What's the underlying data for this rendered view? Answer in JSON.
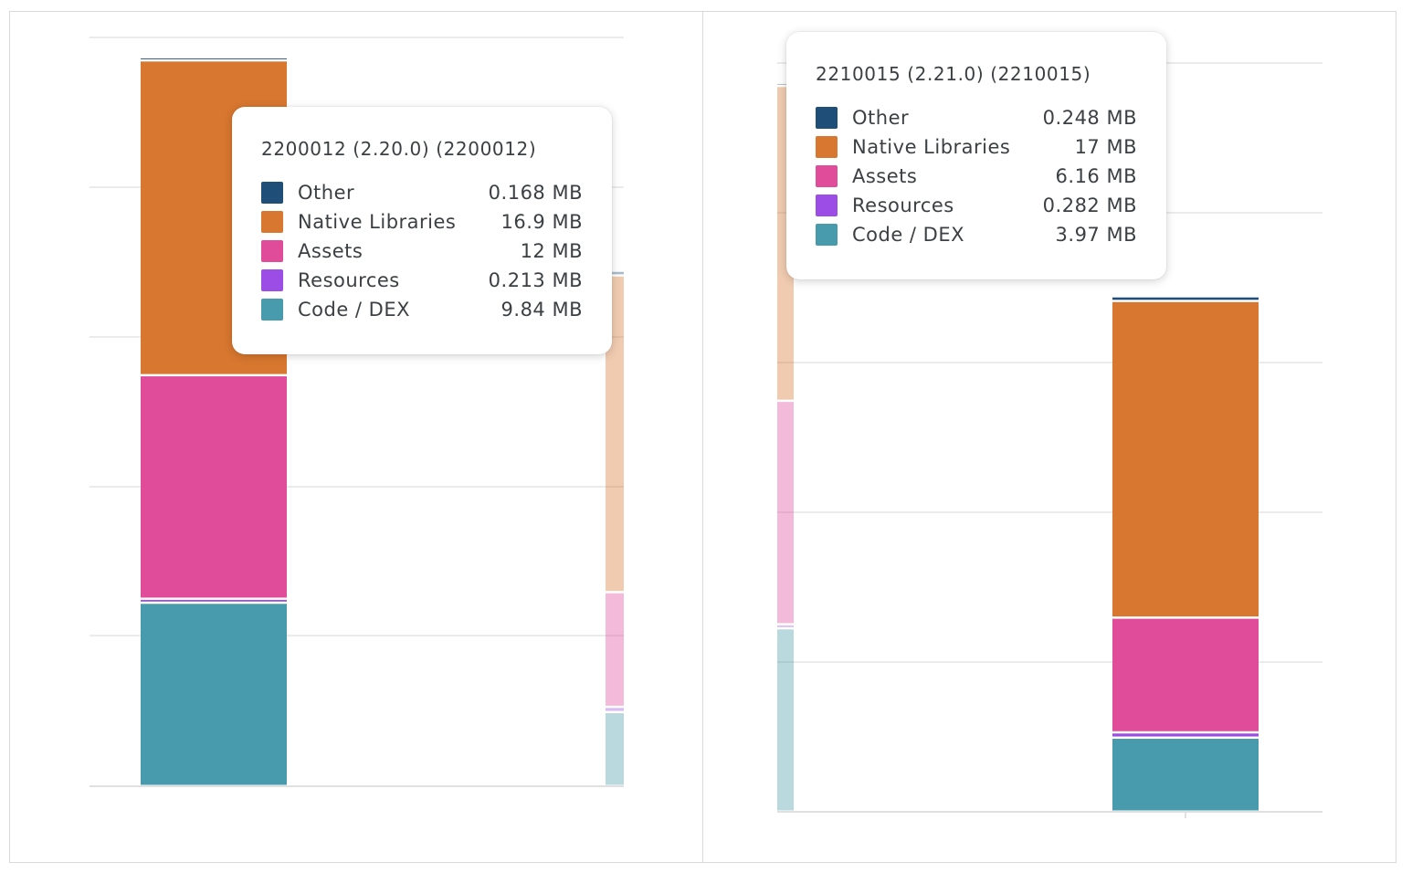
{
  "colors": {
    "other": "#1f4e79",
    "native": "#d8772f",
    "assets": "#e04b9a",
    "resources": "#9b4de6",
    "code": "#489bac",
    "grid": "#ebebeb"
  },
  "chart_data": [
    {
      "type": "bar",
      "stacked": true,
      "unit": "MB",
      "focused_category": "2200012 (2.20.0) (2200012)",
      "series": [
        {
          "name": "Other",
          "values": [
            0.168
          ]
        },
        {
          "name": "Native Libraries",
          "values": [
            16.9
          ]
        },
        {
          "name": "Assets",
          "values": [
            12
          ]
        },
        {
          "name": "Resources",
          "values": [
            0.213
          ]
        },
        {
          "name": "Code / DEX",
          "values": [
            9.84
          ]
        }
      ],
      "tooltip": {
        "title": "2200012 (2.20.0) (2200012)",
        "rows": [
          {
            "name": "Other",
            "value": "0.168 MB",
            "color": "#1f4e79"
          },
          {
            "name": "Native Libraries",
            "value": "16.9 MB",
            "color": "#d8772f"
          },
          {
            "name": "Assets",
            "value": "12 MB",
            "color": "#e04b9a"
          },
          {
            "name": "Resources",
            "value": "0.213 MB",
            "color": "#9b4de6"
          },
          {
            "name": "Code / DEX",
            "value": "9.84 MB",
            "color": "#489bac"
          }
        ]
      }
    },
    {
      "type": "bar",
      "stacked": true,
      "unit": "MB",
      "focused_category": "2210015 (2.21.0) (2210015)",
      "series": [
        {
          "name": "Other",
          "values": [
            0.248
          ]
        },
        {
          "name": "Native Libraries",
          "values": [
            17
          ]
        },
        {
          "name": "Assets",
          "values": [
            6.16
          ]
        },
        {
          "name": "Resources",
          "values": [
            0.282
          ]
        },
        {
          "name": "Code / DEX",
          "values": [
            3.97
          ]
        }
      ],
      "tooltip": {
        "title": "2210015 (2.21.0) (2210015)",
        "rows": [
          {
            "name": "Other",
            "value": "0.248 MB",
            "color": "#1f4e79"
          },
          {
            "name": "Native Libraries",
            "value": "17 MB",
            "color": "#d8772f"
          },
          {
            "name": "Assets",
            "value": "6.16 MB",
            "color": "#e04b9a"
          },
          {
            "name": "Resources",
            "value": "0.282 MB",
            "color": "#9b4de6"
          },
          {
            "name": "Code / DEX",
            "value": "3.97 MB",
            "color": "#489bac"
          }
        ]
      }
    }
  ]
}
